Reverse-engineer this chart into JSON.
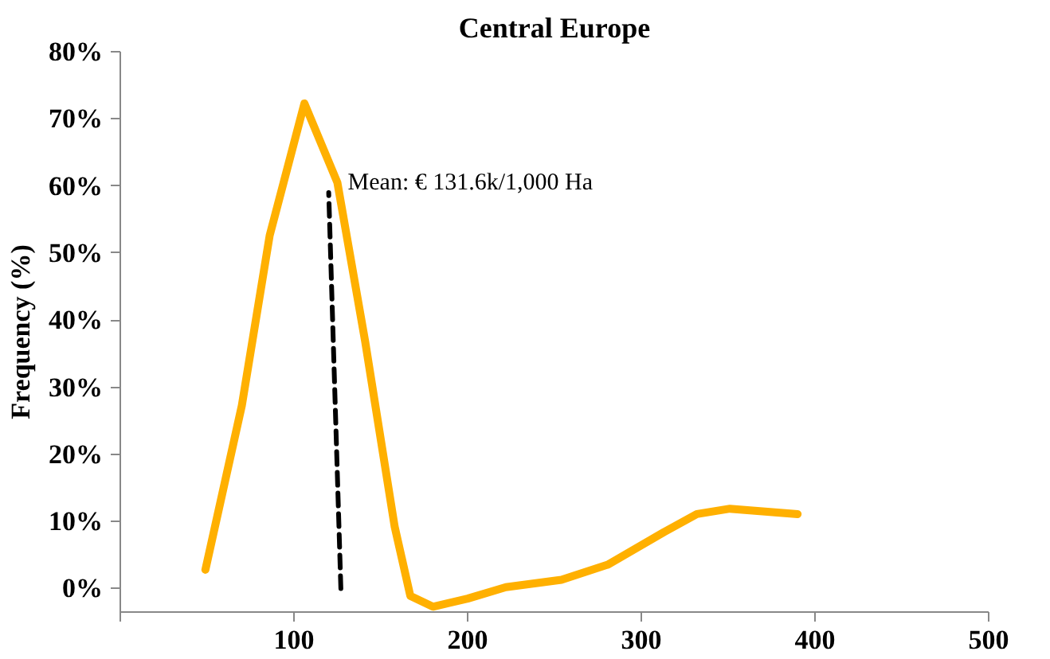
{
  "chart_data": {
    "type": "line",
    "title": "Central Europe",
    "ylabel": "Frequency (%)",
    "xlim": [
      0,
      500
    ],
    "xticks": [
      {
        "value": 0,
        "label": null
      },
      100,
      200,
      300,
      400,
      500
    ],
    "ylim": [
      -3.5,
      80
    ],
    "yticks": [
      {
        "value": 0,
        "label": "0%"
      },
      {
        "value": 10,
        "label": "10%"
      },
      {
        "value": 20,
        "label": "20%"
      },
      {
        "value": 30,
        "label": "30%"
      },
      {
        "value": 40,
        "label": "40%"
      },
      {
        "value": 50,
        "label": "50%"
      },
      {
        "value": 60,
        "label": "60%"
      },
      {
        "value": 70,
        "label": "70%"
      },
      {
        "value": 80,
        "label": "80%"
      }
    ],
    "grid": false,
    "marker": "none",
    "series": [
      {
        "color": "#ffb000",
        "line_style": "solid",
        "x": [
          49,
          70,
          86,
          106,
          125,
          141,
          158,
          167,
          180,
          200,
          222,
          254,
          281,
          313,
          332,
          351,
          390
        ],
        "values": [
          2.8,
          27.3,
          52.6,
          72.3,
          60.5,
          36.8,
          9.2,
          -1.1,
          -2.7,
          -1.5,
          0.2,
          1.3,
          3.6,
          8.4,
          11.1,
          11.9,
          11.1
        ]
      },
      {
        "color": "#000000",
        "line_style": "dashed",
        "x": [
          127,
          120
        ],
        "values": [
          0,
          59
        ]
      }
    ],
    "annotations": [
      {
        "text": "Mean: € 131.6k/1,000 Ha",
        "x": 120,
        "y": 59
      }
    ]
  }
}
